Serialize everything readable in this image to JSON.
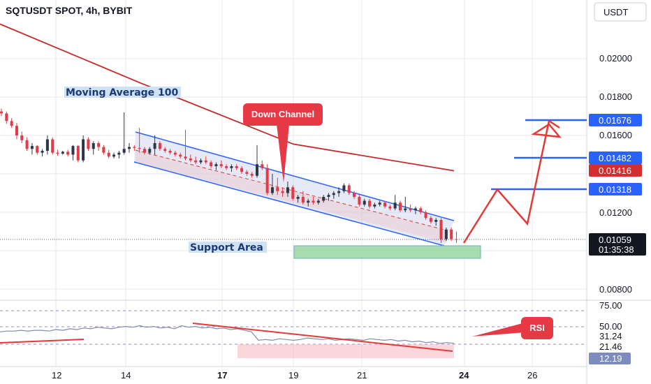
{
  "header": {
    "title": "SQTUSDT SPOT, 4h, BYBIT"
  },
  "currency_button": {
    "label": "USDT"
  },
  "annotations": {
    "moving_average": "Moving Average 100",
    "down_channel": "Down Channel",
    "support_area": "Support Area",
    "rsi": "RSI"
  },
  "price_axis": {
    "ticks": [
      "0.02000",
      "0.01800",
      "0.01600",
      "0.01200",
      "0.00800"
    ],
    "tags": [
      {
        "value": "0.01676",
        "color": "#2962ff"
      },
      {
        "value": "0.01482",
        "color": "#2962ff"
      },
      {
        "value": "0.01416",
        "color": "#d32f2f"
      },
      {
        "value": "0.01318",
        "color": "#2962ff"
      }
    ],
    "last_price": "0.01059",
    "countdown": "01:35:38"
  },
  "rsi_axis": {
    "ticks": [
      "75.00",
      "50.00",
      "21.46"
    ],
    "value_label": "31.24",
    "current": "12.19"
  },
  "time_axis": {
    "labels": [
      {
        "text": "12",
        "bold": false
      },
      {
        "text": "14",
        "bold": false
      },
      {
        "text": "17",
        "bold": true
      },
      {
        "text": "19",
        "bold": false
      },
      {
        "text": "21",
        "bold": false
      },
      {
        "text": "24",
        "bold": true
      },
      {
        "text": "26",
        "bold": false
      }
    ]
  },
  "chart_data": {
    "type": "candlestick",
    "title": "SQTUSDT SPOT, 4h, BYBIT",
    "ylim": [
      0.0078,
      0.0218
    ],
    "series": [
      {
        "values": [
          [
            0.01725,
            0.0174,
            0.017,
            0.01715
          ],
          [
            0.01715,
            0.01725,
            0.0166,
            0.01675
          ],
          [
            0.01675,
            0.0169,
            0.0164,
            0.0165
          ],
          [
            0.0165,
            0.01665,
            0.0158,
            0.016
          ],
          [
            0.016,
            0.0162,
            0.0156,
            0.01575
          ],
          [
            0.01575,
            0.0159,
            0.0152,
            0.0153
          ],
          [
            0.0153,
            0.0156,
            0.015,
            0.01545
          ],
          [
            0.01545,
            0.0155,
            0.015,
            0.0151
          ],
          [
            0.0151,
            0.0153,
            0.0149,
            0.0152
          ],
          [
            0.0152,
            0.016,
            0.015,
            0.0158
          ],
          [
            0.0158,
            0.0159,
            0.015,
            0.0151
          ],
          [
            0.0151,
            0.01525,
            0.01495,
            0.01505
          ],
          [
            0.01505,
            0.0152,
            0.015,
            0.01515
          ],
          [
            0.01515,
            0.01525,
            0.0149,
            0.015
          ],
          [
            0.015,
            0.0155,
            0.0147,
            0.01545
          ],
          [
            0.01545,
            0.0155,
            0.0146,
            0.0147
          ],
          [
            0.0147,
            0.016,
            0.0146,
            0.0158
          ],
          [
            0.0158,
            0.0159,
            0.0152,
            0.0153
          ],
          [
            0.0153,
            0.0157,
            0.015,
            0.0156
          ],
          [
            0.0156,
            0.0157,
            0.0152,
            0.0154
          ],
          [
            0.0154,
            0.0155,
            0.015,
            0.0151
          ],
          [
            0.0151,
            0.01525,
            0.0148,
            0.0149
          ],
          [
            0.0149,
            0.0151,
            0.0148,
            0.015
          ],
          [
            0.015,
            0.0152,
            0.0148,
            0.0151
          ],
          [
            0.0151,
            0.0172,
            0.015,
            0.0153
          ],
          [
            0.0153,
            0.0156,
            0.0151,
            0.0154
          ],
          [
            0.0154,
            0.0155,
            0.0152,
            0.01535
          ],
          [
            0.01535,
            0.0164,
            0.0151,
            0.0153
          ],
          [
            0.0153,
            0.0154,
            0.015,
            0.0151
          ],
          [
            0.0151,
            0.0154,
            0.015,
            0.0153
          ],
          [
            0.0153,
            0.016,
            0.015,
            0.0156
          ],
          [
            0.0156,
            0.0157,
            0.0152,
            0.0153
          ],
          [
            0.0153,
            0.0154,
            0.0151,
            0.0152
          ],
          [
            0.0152,
            0.0153,
            0.015,
            0.0151
          ],
          [
            0.0151,
            0.0152,
            0.0149,
            0.015
          ],
          [
            0.015,
            0.0151,
            0.0148,
            0.0149
          ],
          [
            0.0149,
            0.0163,
            0.0147,
            0.0148
          ],
          [
            0.0148,
            0.015,
            0.0146,
            0.0147
          ],
          [
            0.0147,
            0.0149,
            0.0145,
            0.0146
          ],
          [
            0.0146,
            0.0148,
            0.0145,
            0.0147
          ],
          [
            0.0147,
            0.0149,
            0.0145,
            0.0146
          ],
          [
            0.0146,
            0.0147,
            0.0143,
            0.0144
          ],
          [
            0.0144,
            0.0146,
            0.0142,
            0.0145
          ],
          [
            0.0145,
            0.0147,
            0.0143,
            0.0144
          ],
          [
            0.0144,
            0.0145,
            0.0142,
            0.0143
          ],
          [
            0.0143,
            0.0145,
            0.0141,
            0.0144
          ],
          [
            0.0144,
            0.0145,
            0.0142,
            0.0143
          ],
          [
            0.0143,
            0.0144,
            0.014,
            0.0141
          ],
          [
            0.0141,
            0.0142,
            0.0139,
            0.014
          ],
          [
            0.014,
            0.0141,
            0.0138,
            0.0139
          ],
          [
            0.0139,
            0.0155,
            0.0138,
            0.0145
          ],
          [
            0.0145,
            0.0147,
            0.0142,
            0.0143
          ],
          [
            0.0143,
            0.0145,
            0.0129,
            0.013
          ],
          [
            0.013,
            0.014,
            0.0129,
            0.0133
          ],
          [
            0.0133,
            0.0138,
            0.0129,
            0.0131
          ],
          [
            0.0131,
            0.0133,
            0.0128,
            0.013
          ],
          [
            0.013,
            0.0136,
            0.0128,
            0.0133
          ],
          [
            0.0133,
            0.0134,
            0.0126,
            0.0127
          ],
          [
            0.0127,
            0.0129,
            0.0125,
            0.0128
          ],
          [
            0.0128,
            0.0131,
            0.0124,
            0.0125
          ],
          [
            0.0125,
            0.0127,
            0.0123,
            0.0126
          ],
          [
            0.0126,
            0.0128,
            0.0124,
            0.0125
          ],
          [
            0.0125,
            0.0127,
            0.0124,
            0.0126
          ],
          [
            0.0126,
            0.0129,
            0.0125,
            0.0128
          ],
          [
            0.0128,
            0.013,
            0.0126,
            0.0129
          ],
          [
            0.0129,
            0.0131,
            0.0127,
            0.013
          ],
          [
            0.013,
            0.0133,
            0.0128,
            0.0131
          ],
          [
            0.0131,
            0.0135,
            0.013,
            0.0134
          ],
          [
            0.0134,
            0.0135,
            0.0129,
            0.013
          ],
          [
            0.013,
            0.0131,
            0.0127,
            0.0128
          ],
          [
            0.0128,
            0.0129,
            0.0123,
            0.0124
          ],
          [
            0.0124,
            0.0127,
            0.0123,
            0.0126
          ],
          [
            0.0126,
            0.0127,
            0.0122,
            0.0123
          ],
          [
            0.0123,
            0.0125,
            0.0122,
            0.0124
          ],
          [
            0.0124,
            0.0126,
            0.0123,
            0.0125
          ],
          [
            0.0125,
            0.0126,
            0.0122,
            0.0123
          ],
          [
            0.0123,
            0.0124,
            0.0121,
            0.0122
          ],
          [
            0.0122,
            0.0129,
            0.0121,
            0.0125
          ],
          [
            0.0125,
            0.0126,
            0.012,
            0.0121
          ],
          [
            0.0121,
            0.0128,
            0.012,
            0.0122
          ],
          [
            0.0122,
            0.0124,
            0.012,
            0.0121
          ],
          [
            0.0121,
            0.0123,
            0.0119,
            0.0122
          ],
          [
            0.0122,
            0.0123,
            0.0119,
            0.012
          ],
          [
            0.012,
            0.0121,
            0.0116,
            0.0117
          ],
          [
            0.0117,
            0.0118,
            0.0114,
            0.0115
          ],
          [
            0.0115,
            0.0117,
            0.0113,
            0.0116
          ],
          [
            0.0116,
            0.0117,
            0.0104,
            0.0106
          ],
          [
            0.0106,
            0.0112,
            0.0105,
            0.0111
          ],
          [
            0.0111,
            0.0112,
            0.0105,
            0.0106
          ],
          [
            0.0106,
            0.011,
            0.0104,
            0.01059
          ]
        ]
      }
    ],
    "moving_average": {
      "name": "Moving Average 100",
      "values": [
        0.0218,
        0.01875,
        0.01555,
        0.01416
      ]
    },
    "projection": {
      "values": [
        0.01059,
        0.01318,
        0.0114,
        0.01676,
        0.0164
      ]
    },
    "levels": [
      0.01676,
      0.01482,
      0.01318
    ],
    "rsi": {
      "ylim": [
        0,
        100
      ],
      "ticks": [
        75,
        50,
        21.46
      ],
      "values": [
        27,
        28,
        28,
        29,
        28,
        29,
        29,
        28,
        30,
        29,
        31,
        30,
        32,
        31,
        33,
        32,
        31,
        33,
        34,
        33,
        35,
        33,
        34,
        32,
        33,
        31,
        35,
        33,
        34,
        32,
        33,
        31,
        32,
        30,
        31,
        29,
        27,
        16,
        17,
        16,
        18,
        17,
        16,
        17,
        19,
        18,
        17,
        18,
        16,
        17,
        18,
        17,
        16,
        18,
        17,
        16,
        17,
        15,
        16,
        14,
        15,
        13,
        14,
        12,
        13,
        12
      ]
    }
  }
}
